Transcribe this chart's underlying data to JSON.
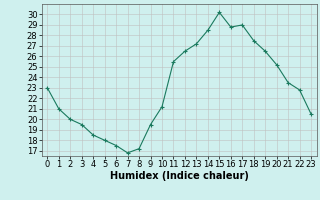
{
  "x": [
    0,
    1,
    2,
    3,
    4,
    5,
    6,
    7,
    8,
    9,
    10,
    11,
    12,
    13,
    14,
    15,
    16,
    17,
    18,
    19,
    20,
    21,
    22,
    23
  ],
  "y": [
    23,
    21,
    20,
    19.5,
    18.5,
    18,
    17.5,
    16.8,
    17.2,
    19.5,
    21.2,
    25.5,
    26.5,
    27.2,
    28.5,
    30.2,
    28.8,
    29.0,
    27.5,
    26.5,
    25.2,
    23.5,
    22.8,
    20.5
  ],
  "line_color": "#1a7a5e",
  "marker": "+",
  "marker_size": 3,
  "bg_color": "#cff0ee",
  "grid_color": "#c0c0c0",
  "xlabel": "Humidex (Indice chaleur)",
  "ylim": [
    16.5,
    31
  ],
  "xlim": [
    -0.5,
    23.5
  ],
  "yticks": [
    17,
    18,
    19,
    20,
    21,
    22,
    23,
    24,
    25,
    26,
    27,
    28,
    29,
    30
  ],
  "xticks": [
    0,
    1,
    2,
    3,
    4,
    5,
    6,
    7,
    8,
    9,
    10,
    11,
    12,
    13,
    14,
    15,
    16,
    17,
    18,
    19,
    20,
    21,
    22,
    23
  ],
  "xlabel_fontsize": 7,
  "tick_fontsize": 6,
  "linewidth": 0.8,
  "markeredgewidth": 0.8
}
